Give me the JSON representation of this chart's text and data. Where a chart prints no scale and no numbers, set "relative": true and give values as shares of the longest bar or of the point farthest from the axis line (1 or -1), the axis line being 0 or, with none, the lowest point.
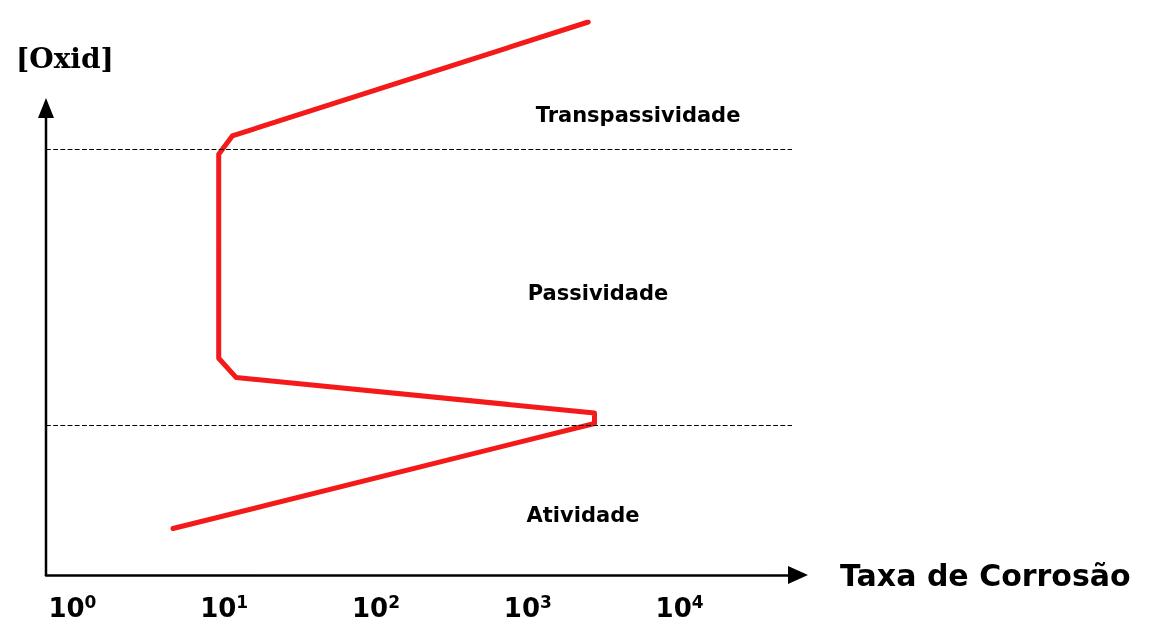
{
  "chart_data": {
    "type": "line",
    "relative": true,
    "log": "x",
    "xlabel": "Taxa de Corrosão",
    "ylabel": "[Oxid]",
    "xlim": [
      0.67,
      55000
    ],
    "xticks": [
      {
        "value": 1,
        "label": "10$^{0}$"
      },
      {
        "value": 10,
        "label": "10$^{1}$"
      },
      {
        "value": 100,
        "label": "10$^{2}$"
      },
      {
        "value": 1000,
        "label": "10$^{3}$"
      },
      {
        "value": 10000,
        "label": "10$^{4}$"
      }
    ],
    "grid": false,
    "marker": "none",
    "line_style": "solid",
    "series": [
      {
        "color": "#f41a1a",
        "x": [
          4.6,
          2750,
          2750,
          12,
          9.2,
          9.2,
          11.3,
          2500
        ],
        "values": [
          0.084,
          0.274,
          0.293,
          0.357,
          0.392,
          0.761,
          0.794,
          1
        ]
      }
    ],
    "ref_lines": [
      {
        "axis": "y",
        "value": 0.77,
        "line_style": "dashed",
        "color": "#000000"
      },
      {
        "axis": "y",
        "value": 0.272,
        "line_style": "dashed",
        "color": "#000000"
      }
    ],
    "annotations": [
      "Transpassividade",
      "Passividade",
      "Atividade"
    ]
  }
}
